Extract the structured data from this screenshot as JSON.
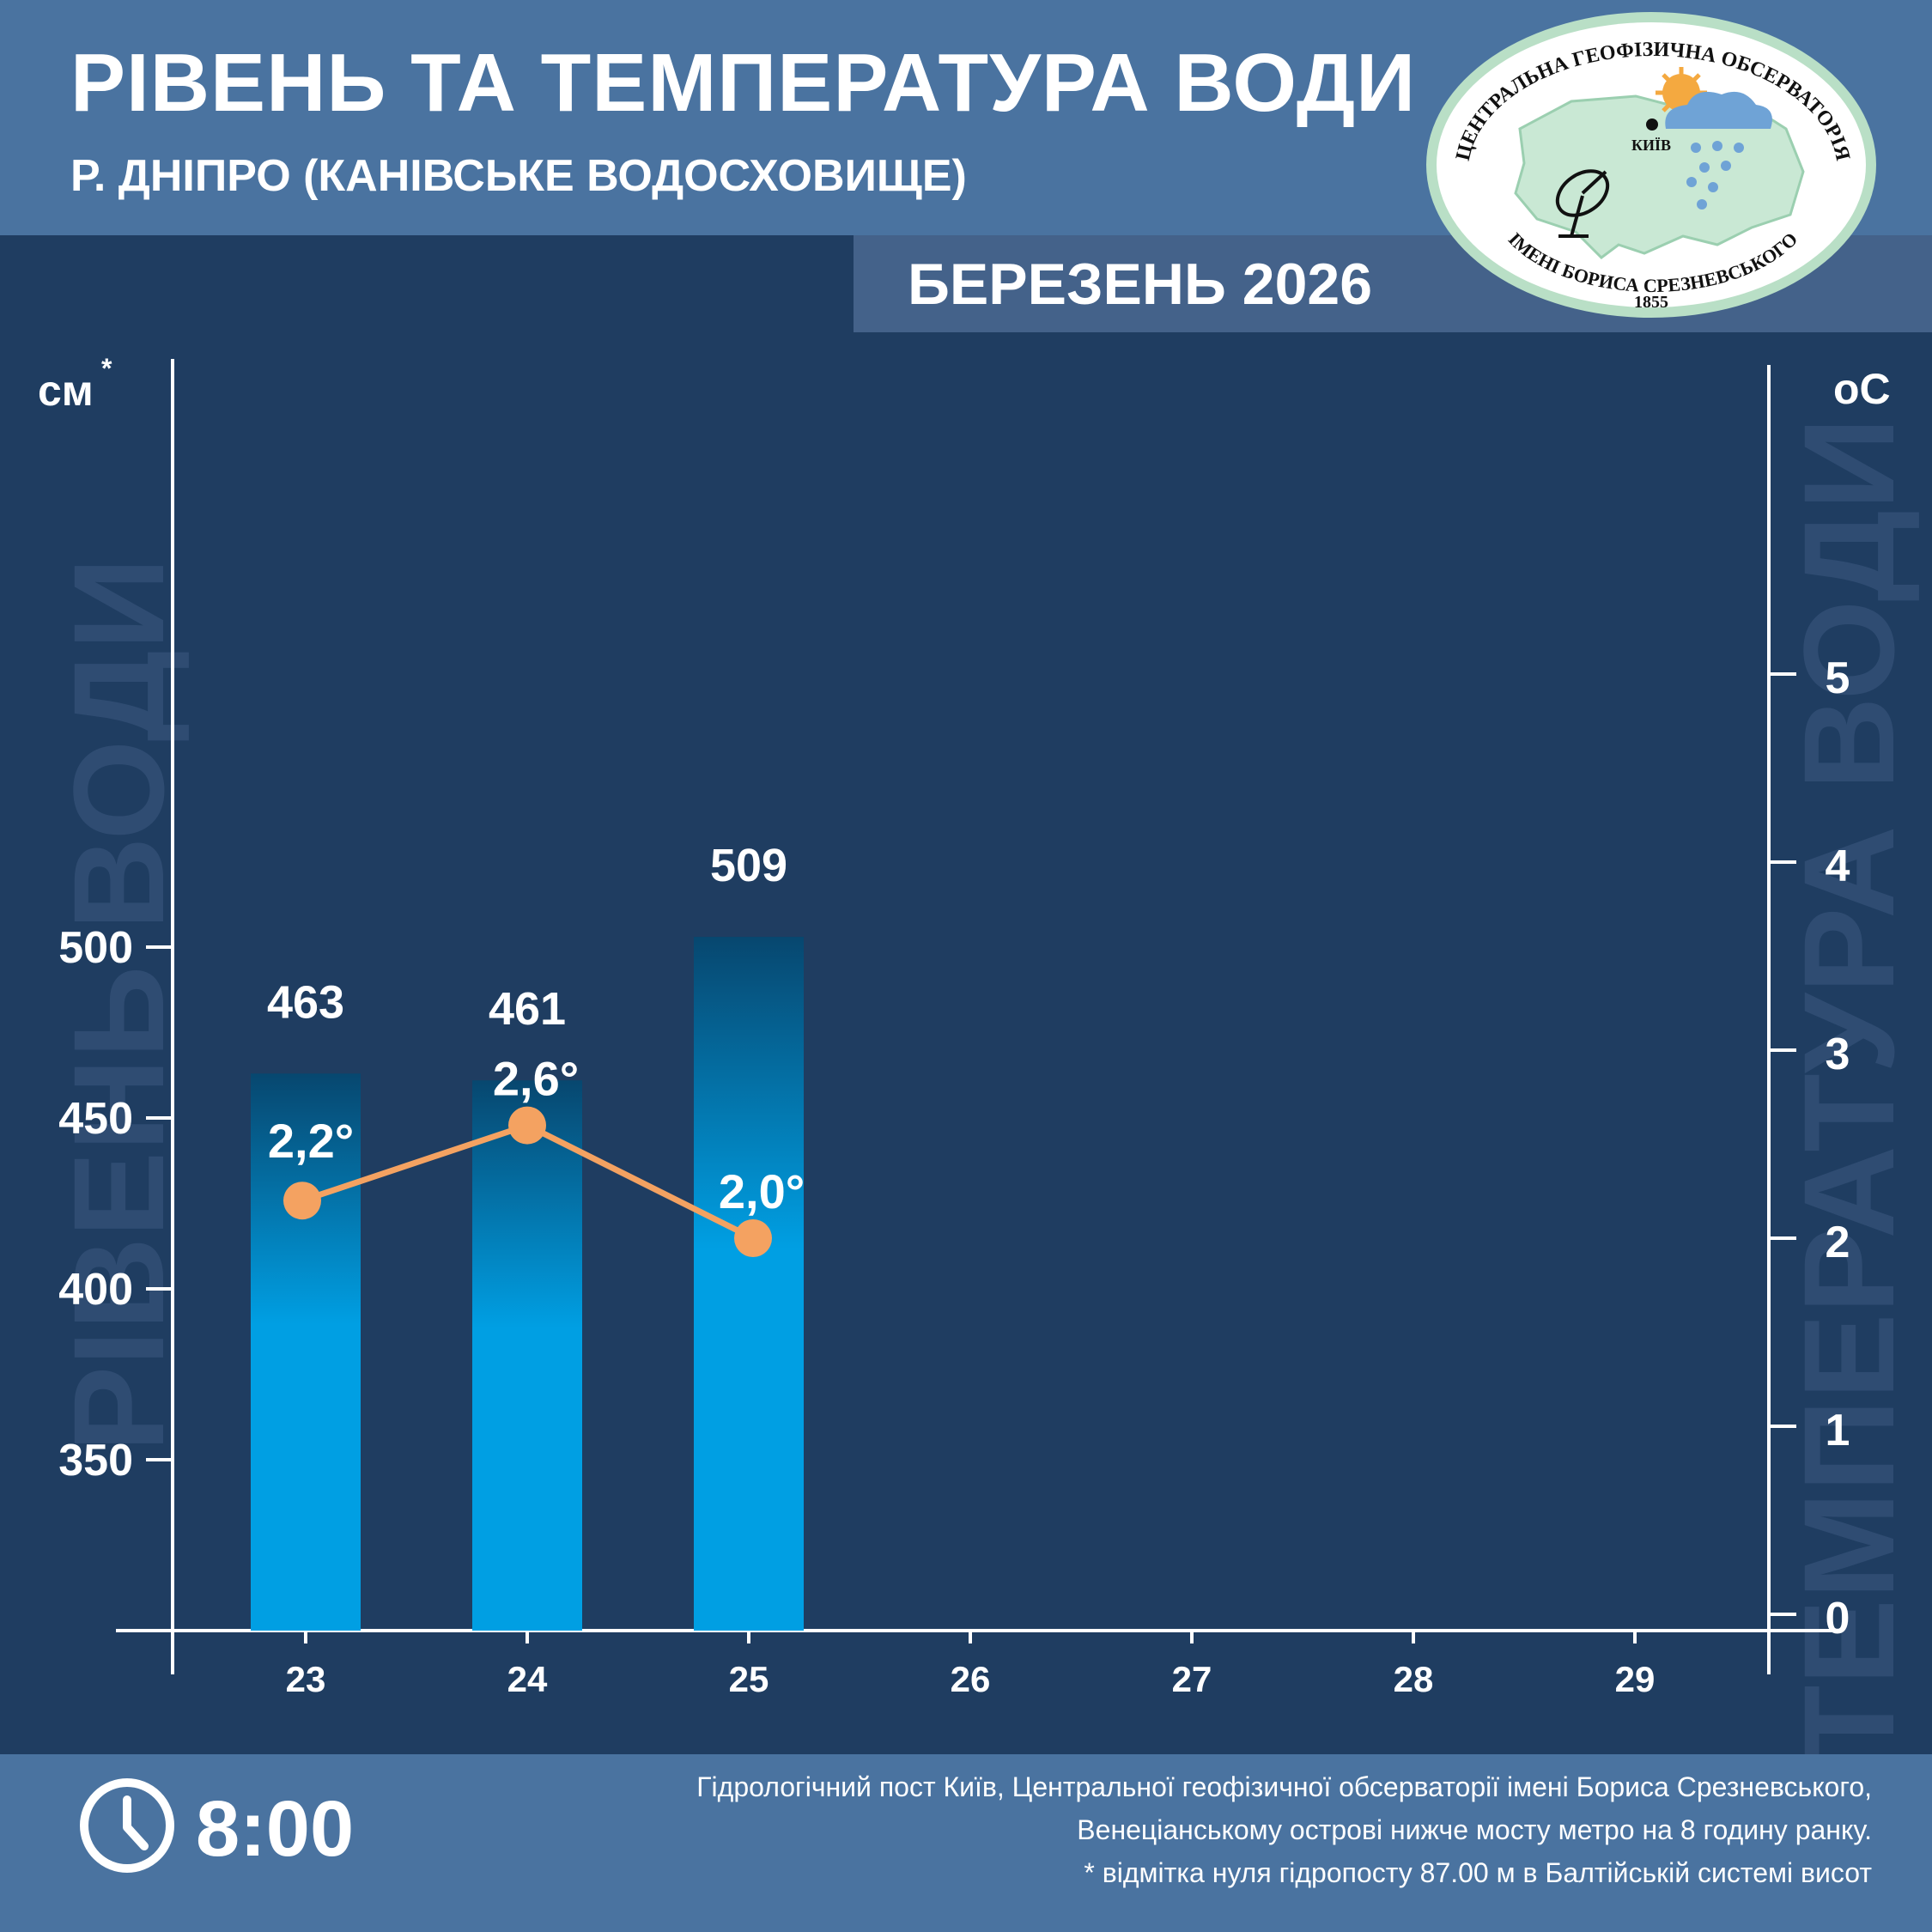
{
  "header": {
    "title": "РІВЕНЬ ТА ТЕМПЕРАТУРА ВОДИ",
    "subtitle": "Р. ДНІПРО (КАНІВСЬКЕ ВОДОСХОВИЩЕ)",
    "month": "БЕРЕЗЕНЬ 2026"
  },
  "logo": {
    "top_text": "ЦЕНТРАЛЬНА ГЕОФІЗИЧНА ОБСЕРВАТОРІЯ",
    "bottom_text": "ІМЕНІ БОРИСА СРЕЗНЕВСЬКОГО",
    "year": "1855",
    "city": "КИЇВ"
  },
  "chart_data": {
    "type": "bar",
    "categories": [
      "23",
      "24",
      "25",
      "26",
      "27",
      "28",
      "29"
    ],
    "series": [
      {
        "values": [
          463,
          461,
          509,
          null,
          null,
          null,
          null
        ]
      },
      {
        "values": [
          2.2,
          2.6,
          2.0,
          null,
          null,
          null,
          null
        ]
      }
    ],
    "bar_labels": [
      "463",
      "461",
      "509"
    ],
    "temp_labels": [
      "2,2°",
      "2,6°",
      "2,0°"
    ],
    "y_left": {
      "label": "РІВЕНЬ ВОДИ",
      "unit": "см",
      "unit_mark": "*",
      "ticks": [
        350,
        400,
        450,
        500
      ],
      "ylim": [
        300,
        500
      ]
    },
    "y_right": {
      "label": "ТЕМПЕРАТУРА ВОДИ",
      "unit": "оС",
      "ticks": [
        0,
        1,
        2,
        3,
        4,
        5
      ],
      "ylim": [
        0,
        6.5
      ]
    },
    "grid": false,
    "colors": {
      "bar": "#009fe3",
      "bar_top": "#07476f",
      "line": "#f4a261",
      "background": "#1f3d61"
    }
  },
  "footer": {
    "time": "8:00",
    "note_lines": [
      "Гідрологічний пост Київ, Центральної геофізичної обсерваторії імені Бориса Срезневського,",
      "Венеціанському острові нижче мосту метро  на 8 годину ранку.",
      "* відмітка нуля гідропосту 87.00 м в Балтійській системі висот"
    ]
  }
}
